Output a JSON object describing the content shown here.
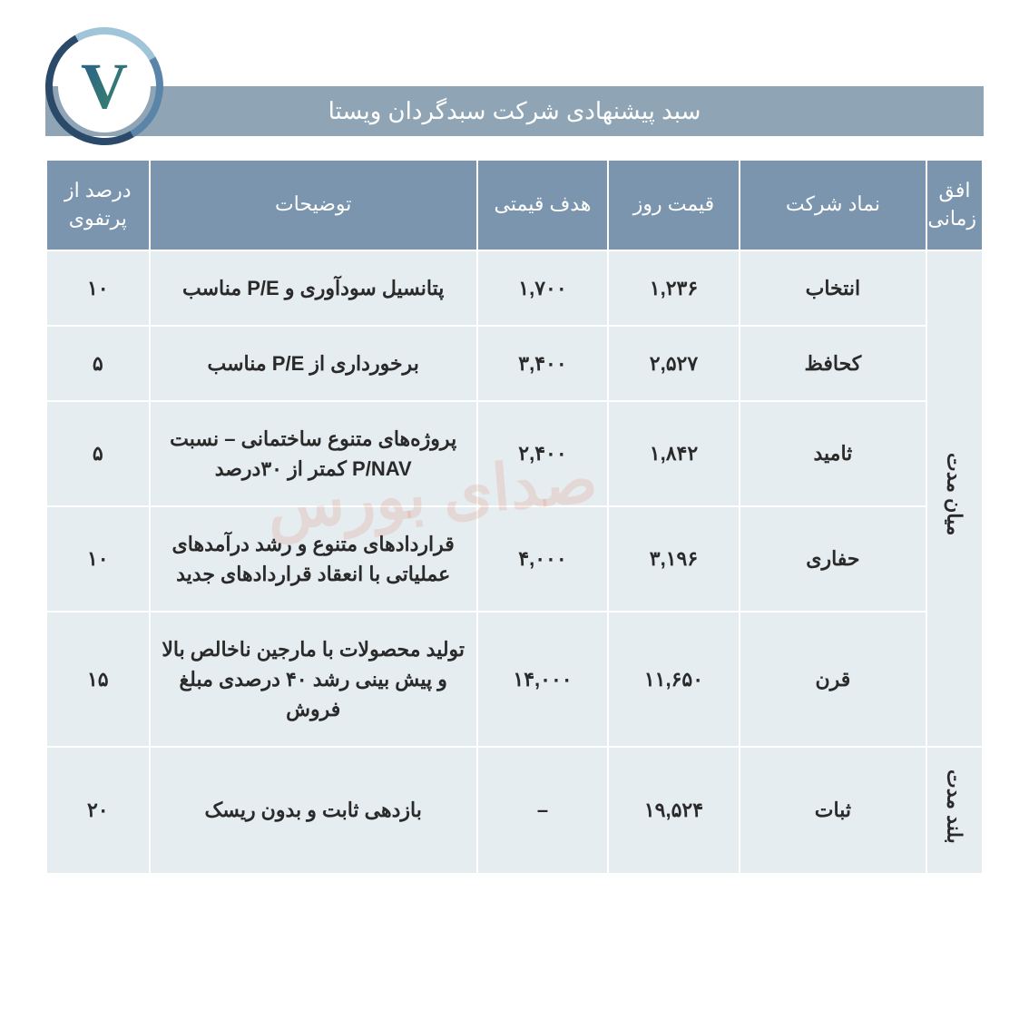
{
  "title": "سبد پیشنهادی شرکت سبدگردان ویستا",
  "logo": {
    "letter": "V"
  },
  "styling": {
    "title_bg": "#8fa5b5",
    "header_bg": "#7a95ad",
    "cell_bg": "#e6edf0",
    "border_color": "#ffffff",
    "text_color": "#2a2a2a",
    "header_text_color": "#ffffff"
  },
  "columns": {
    "horizon": "افق زمانی",
    "symbol": "نماد شرکت",
    "price": "قیمت روز",
    "target": "هدف قیمتی",
    "description": "توضیحات",
    "percentage": "درصد از پرتفوی"
  },
  "horizons": {
    "mid": "میان مدت",
    "long": "بلند مدت"
  },
  "rows": [
    {
      "symbol": "انتخاب",
      "price": "۱,۲۳۶",
      "target": "۱,۷۰۰",
      "description": "پتانسیل سودآوری و P/E مناسب",
      "percentage": "۱۰"
    },
    {
      "symbol": "کحافظ",
      "price": "۲,۵۲۷",
      "target": "۳,۴۰۰",
      "description": "برخورداری از P/E مناسب",
      "percentage": "۵"
    },
    {
      "symbol": "ثامید",
      "price": "۱,۸۴۲",
      "target": "۲,۴۰۰",
      "description": "پروژه‌های متنوع ساختمانی – نسبت P/NAV کمتر از ۳۰درصد",
      "percentage": "۵"
    },
    {
      "symbol": "حفاری",
      "price": "۳,۱۹۶",
      "target": "۴,۰۰۰",
      "description": "قراردادهای متنوع و رشد درآمدهای عملیاتی با انعقاد قراردادهای جدید",
      "percentage": "۱۰"
    },
    {
      "symbol": "قرن",
      "price": "۱۱,۶۵۰",
      "target": "۱۴,۰۰۰",
      "description": "تولید محصولات با مارجین ناخالص بالا و پیش بینی رشد ۴۰ درصدی مبلغ فروش",
      "percentage": "۱۵"
    },
    {
      "symbol": "ثبات",
      "price": "۱۹,۵۲۴",
      "target": "–",
      "description": "بازدهی ثابت و بدون ریسک",
      "percentage": "۲۰"
    }
  ],
  "watermark": "صدای بورس"
}
